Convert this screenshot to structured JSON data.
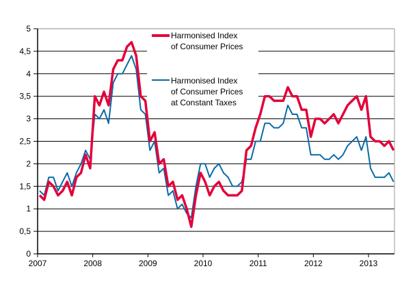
{
  "chart_data": {
    "type": "line",
    "title": "",
    "xlabel": "",
    "ylabel": "",
    "ylim": [
      0,
      5
    ],
    "yticks": [
      "0",
      "0,5",
      "1",
      "1,5",
      "2",
      "2,5",
      "3",
      "3,5",
      "4",
      "4,5",
      "5"
    ],
    "xticks": [
      "2007",
      "2008",
      "2009",
      "2010",
      "2011",
      "2012",
      "2013"
    ],
    "x_start": "2007-01",
    "x_frequency": "monthly",
    "grid": true,
    "legend": "top-center",
    "series": [
      {
        "name": "Harmonised Index of Consumer Prices",
        "name_lines": [
          "Harmonised Index",
          "of Consumer Prices"
        ],
        "color": "#e4003a",
        "values": [
          1.3,
          1.2,
          1.6,
          1.5,
          1.3,
          1.4,
          1.6,
          1.3,
          1.7,
          1.8,
          2.2,
          1.9,
          3.5,
          3.3,
          3.6,
          3.3,
          4.1,
          4.3,
          4.3,
          4.6,
          4.7,
          4.4,
          3.5,
          3.4,
          2.5,
          2.7,
          2.0,
          2.1,
          1.5,
          1.6,
          1.2,
          1.3,
          1.0,
          0.6,
          1.3,
          1.8,
          1.6,
          1.3,
          1.5,
          1.6,
          1.4,
          1.3,
          1.3,
          1.3,
          1.4,
          2.3,
          2.4,
          2.8,
          3.1,
          3.5,
          3.5,
          3.4,
          3.4,
          3.4,
          3.7,
          3.5,
          3.5,
          3.2,
          3.2,
          2.6,
          3.0,
          3.0,
          2.9,
          3.0,
          3.1,
          2.9,
          3.1,
          3.3,
          3.4,
          3.5,
          3.2,
          3.5,
          2.6,
          2.5,
          2.5,
          2.4,
          2.5,
          2.3
        ]
      },
      {
        "name": "Harmonised Index of Consumer Prices at Constant Taxes",
        "name_lines": [
          "Harmonised Index",
          "of Consumer Prices",
          "at Constant Taxes"
        ],
        "color": "#0a69a8",
        "values": [
          1.4,
          1.3,
          1.7,
          1.7,
          1.4,
          1.6,
          1.8,
          1.5,
          1.8,
          2.0,
          2.3,
          2.1,
          3.1,
          3.0,
          3.2,
          2.9,
          3.8,
          4.0,
          4.0,
          4.2,
          4.4,
          4.1,
          3.2,
          3.1,
          2.3,
          2.5,
          1.8,
          1.9,
          1.3,
          1.4,
          1.0,
          1.1,
          0.9,
          0.8,
          1.5,
          2.0,
          2.0,
          1.7,
          1.9,
          2.0,
          1.8,
          1.7,
          1.5,
          1.5,
          1.6,
          2.1,
          2.1,
          2.5,
          2.5,
          2.9,
          2.9,
          2.8,
          2.8,
          2.9,
          3.3,
          3.1,
          3.1,
          2.8,
          2.8,
          2.2,
          2.2,
          2.2,
          2.1,
          2.1,
          2.2,
          2.1,
          2.2,
          2.4,
          2.5,
          2.6,
          2.3,
          2.6,
          1.9,
          1.7,
          1.7,
          1.7,
          1.8,
          1.6
        ]
      }
    ]
  }
}
